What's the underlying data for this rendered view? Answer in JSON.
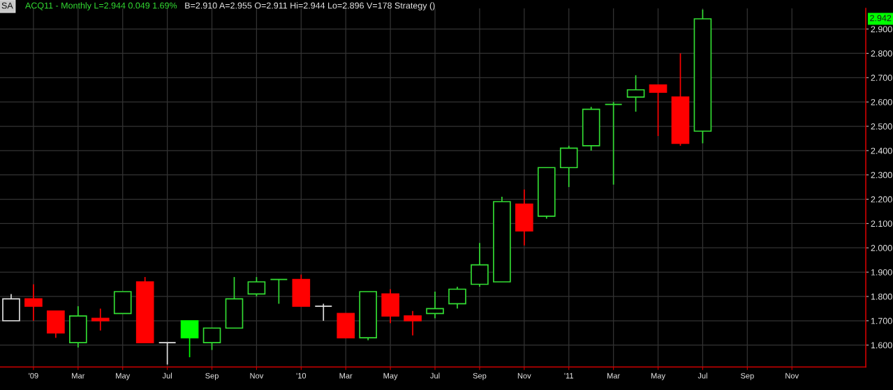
{
  "chart_data": {
    "type": "candlestick",
    "title": "ACQ11 - Monthly L=2.944 0.049 1.69%",
    "subtitle": "B=2.910 A=2.955 O=2.911 Hi=2.944 Lo=2.896 V=178 Strategy ()",
    "annotations": [
      "SA",
      {
        "text": "2.942",
        "y": 2.942
      }
    ],
    "x": [
      "2008-12",
      "2009-01",
      "2009-02",
      "2009-03",
      "2009-04",
      "2009-05",
      "2009-06",
      "2009-07",
      "2009-08",
      "2009-09",
      "2009-10",
      "2009-11",
      "2009-12",
      "2010-01",
      "2010-02",
      "2010-03",
      "2010-04",
      "2010-05",
      "2010-06",
      "2010-07",
      "2010-08",
      "2010-09",
      "2010-10",
      "2010-11",
      "2010-12",
      "2011-01",
      "2011-02",
      "2011-03",
      "2011-04",
      "2011-05",
      "2011-06",
      "2011-07"
    ],
    "ohlc": [
      [
        1.7,
        1.81,
        1.7,
        1.79
      ],
      [
        1.79,
        1.85,
        1.7,
        1.76
      ],
      [
        1.74,
        1.74,
        1.63,
        1.65
      ],
      [
        1.61,
        1.76,
        1.59,
        1.72
      ],
      [
        1.71,
        1.75,
        1.66,
        1.7
      ],
      [
        1.73,
        1.82,
        1.73,
        1.82
      ],
      [
        1.86,
        1.88,
        1.61,
        1.61
      ],
      [
        1.61,
        1.61,
        1.52,
        1.61
      ],
      [
        1.7,
        1.7,
        1.55,
        1.63
      ],
      [
        1.61,
        1.67,
        1.58,
        1.67
      ],
      [
        1.67,
        1.88,
        1.67,
        1.79
      ],
      [
        1.81,
        1.88,
        1.8,
        1.86
      ],
      [
        1.87,
        1.87,
        1.77,
        1.87
      ],
      [
        1.87,
        1.89,
        1.76,
        1.76
      ],
      [
        1.76,
        1.77,
        1.7,
        1.76
      ],
      [
        1.73,
        1.73,
        1.63,
        1.63
      ],
      [
        1.63,
        1.82,
        1.62,
        1.82
      ],
      [
        1.81,
        1.83,
        1.69,
        1.72
      ],
      [
        1.72,
        1.74,
        1.64,
        1.7
      ],
      [
        1.73,
        1.82,
        1.71,
        1.75
      ],
      [
        1.77,
        1.84,
        1.75,
        1.83
      ],
      [
        1.85,
        2.02,
        1.84,
        1.93
      ],
      [
        1.86,
        2.21,
        1.86,
        2.19
      ],
      [
        2.18,
        2.24,
        2.01,
        2.07
      ],
      [
        2.13,
        2.33,
        2.12,
        2.33
      ],
      [
        2.33,
        2.42,
        2.25,
        2.41
      ],
      [
        2.42,
        2.58,
        2.4,
        2.57
      ],
      [
        2.59,
        2.6,
        2.26,
        2.59
      ],
      [
        2.62,
        2.71,
        2.56,
        2.65
      ],
      [
        2.67,
        2.67,
        2.46,
        2.64
      ],
      [
        2.62,
        2.8,
        2.42,
        2.43
      ],
      [
        2.48,
        2.98,
        2.43,
        2.942
      ]
    ],
    "colors": [
      "#e0e0e0",
      "#ff0000",
      "#ff0000",
      "#33dd33",
      "#ff0000",
      "#33dd33",
      "#ff0000",
      "#e0e0e0",
      "#00ff00",
      "#33dd33",
      "#33dd33",
      "#33dd33",
      "#33dd33",
      "#ff0000",
      "#e0e0e0",
      "#ff0000",
      "#33dd33",
      "#ff0000",
      "#ff0000",
      "#33dd33",
      "#33dd33",
      "#33dd33",
      "#33dd33",
      "#ff0000",
      "#33dd33",
      "#33dd33",
      "#33dd33",
      "#33dd33",
      "#33dd33",
      "#ff0000",
      "#ff0000",
      "#33dd33"
    ],
    "xlim": [
      "2008-11-16",
      "2012-02-10"
    ],
    "xticks": [
      {
        "value": "2009-01",
        "label": "'09"
      },
      {
        "value": "2009-03",
        "label": "Mar"
      },
      {
        "value": "2009-05",
        "label": "May"
      },
      {
        "value": "2009-07",
        "label": "Jul"
      },
      {
        "value": "2009-09",
        "label": "Sep"
      },
      {
        "value": "2009-11",
        "label": "Nov"
      },
      {
        "value": "2010-01",
        "label": "'10"
      },
      {
        "value": "2010-03",
        "label": "Mar"
      },
      {
        "value": "2010-05",
        "label": "May"
      },
      {
        "value": "2010-07",
        "label": "Jul"
      },
      {
        "value": "2010-09",
        "label": "Sep"
      },
      {
        "value": "2010-11",
        "label": "Nov"
      },
      {
        "value": "2011-01",
        "label": "'11"
      },
      {
        "value": "2011-03",
        "label": "Mar"
      },
      {
        "value": "2011-05",
        "label": "May"
      },
      {
        "value": "2011-07",
        "label": "Jul"
      },
      {
        "value": "2011-09",
        "label": "Sep"
      },
      {
        "value": "2011-11",
        "label": "Nov"
      }
    ],
    "ylim": [
      1.51,
      2.985
    ],
    "yticks": [
      {
        "value": 1.6,
        "label": "1.600"
      },
      {
        "value": 1.7,
        "label": "1.700"
      },
      {
        "value": 1.8,
        "label": "1.800"
      },
      {
        "value": 1.9,
        "label": "1.900"
      },
      {
        "value": 2.0,
        "label": "2.000"
      },
      {
        "value": 2.1,
        "label": "2.100"
      },
      {
        "value": 2.2,
        "label": "2.200"
      },
      {
        "value": 2.3,
        "label": "2.300"
      },
      {
        "value": 2.4,
        "label": "2.400"
      },
      {
        "value": 2.5,
        "label": "2.500"
      },
      {
        "value": 2.6,
        "label": "2.600"
      },
      {
        "value": 2.7,
        "label": "2.700"
      },
      {
        "value": 2.8,
        "label": "2.800"
      },
      {
        "value": 2.9,
        "label": "2.900"
      }
    ],
    "grid": true
  }
}
